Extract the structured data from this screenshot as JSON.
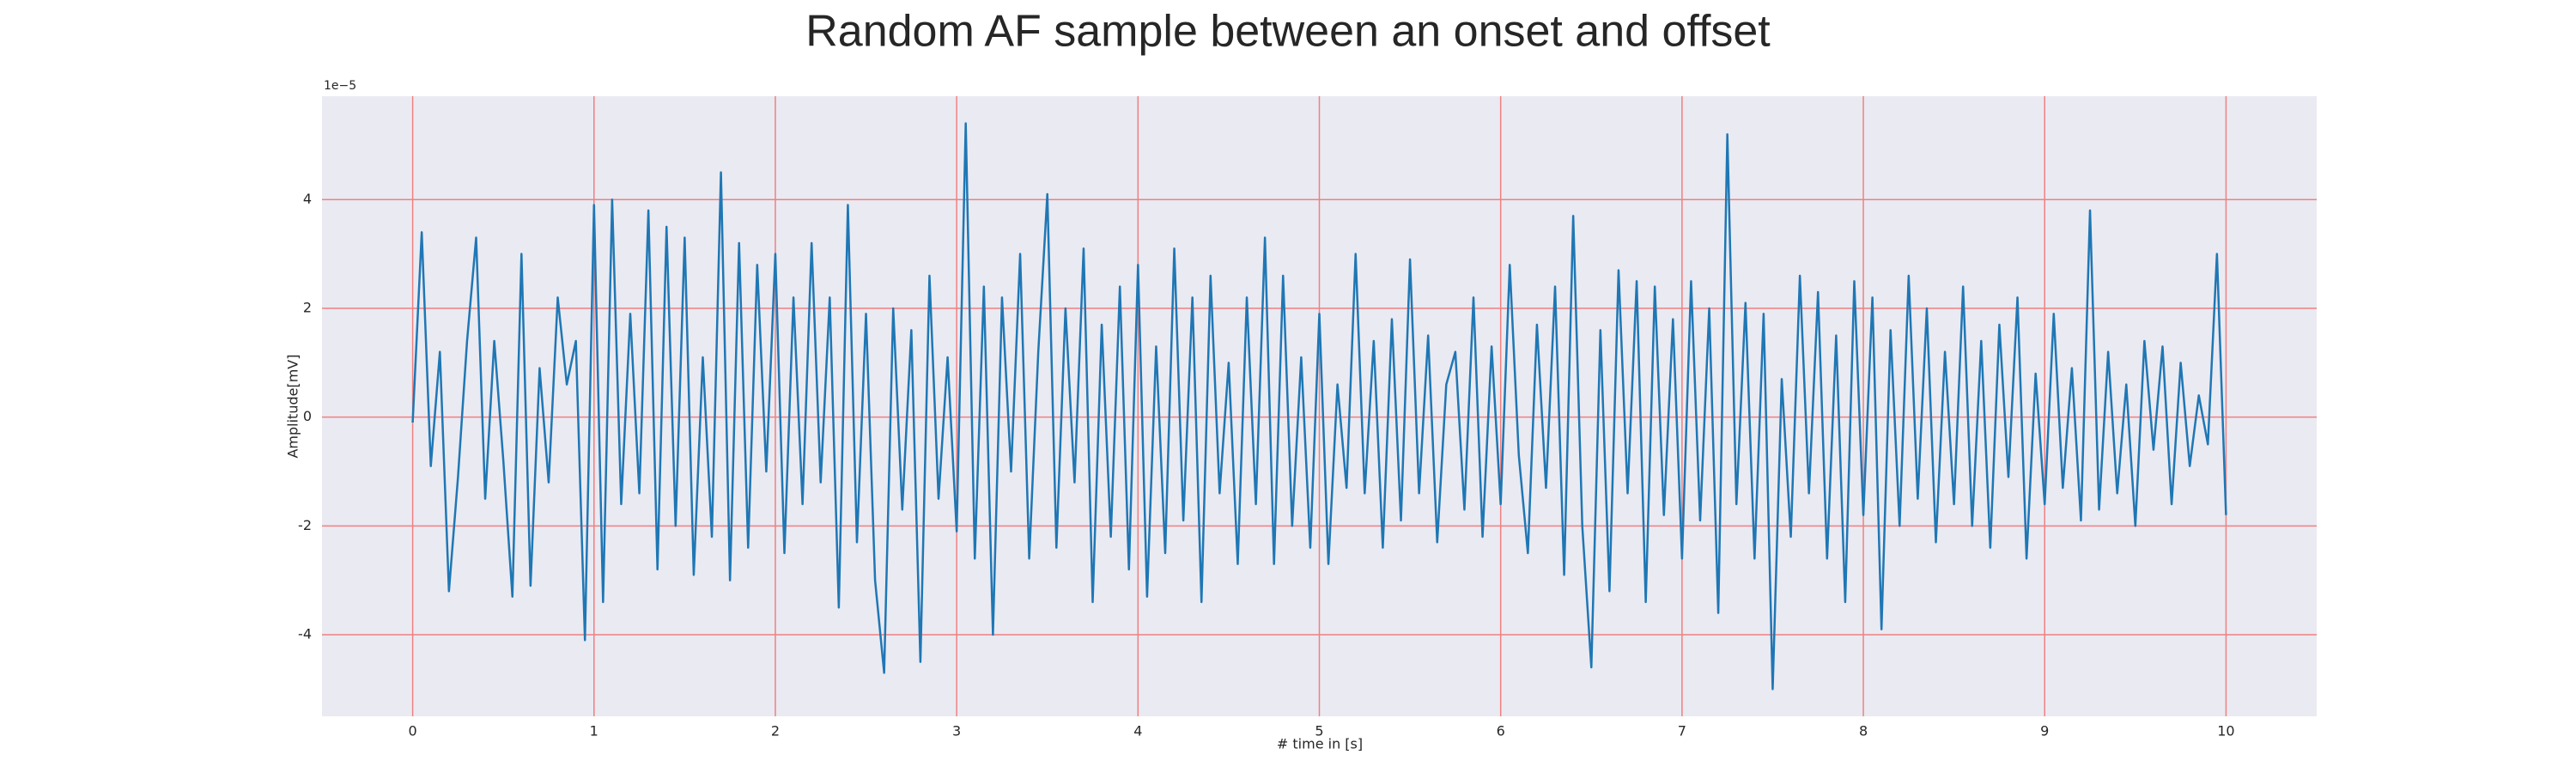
{
  "chart_data": {
    "type": "line",
    "title": "Random AF sample between an onset and offset",
    "x_label": "# time in [s]",
    "y_label": "Amplitude[mV]",
    "y_offset_label": "1e−5",
    "x": [
      0,
      0.05,
      0.1,
      0.15,
      0.2,
      0.25,
      0.3,
      0.35,
      0.4,
      0.45,
      0.5,
      0.55,
      0.6,
      0.65,
      0.7,
      0.75,
      0.8,
      0.85,
      0.9,
      0.95,
      1,
      1.05,
      1.1,
      1.15,
      1.2,
      1.25,
      1.3,
      1.35,
      1.4,
      1.45,
      1.5,
      1.55,
      1.6,
      1.65,
      1.7,
      1.75,
      1.8,
      1.85,
      1.9,
      1.95,
      2,
      2.05,
      2.1,
      2.15,
      2.2,
      2.25,
      2.3,
      2.35,
      2.4,
      2.45,
      2.5,
      2.55,
      2.6,
      2.65,
      2.7,
      2.75,
      2.8,
      2.85,
      2.9,
      2.95,
      3,
      3.05,
      3.1,
      3.15,
      3.2,
      3.25,
      3.3,
      3.35,
      3.4,
      3.45,
      3.5,
      3.55,
      3.6,
      3.65,
      3.7,
      3.75,
      3.8,
      3.85,
      3.9,
      3.95,
      4,
      4.05,
      4.1,
      4.15,
      4.2,
      4.25,
      4.3,
      4.35,
      4.4,
      4.45,
      4.5,
      4.55,
      4.6,
      4.65,
      4.7,
      4.75,
      4.8,
      4.85,
      4.9,
      4.95,
      5,
      5.05,
      5.1,
      5.15,
      5.2,
      5.25,
      5.3,
      5.35,
      5.4,
      5.45,
      5.5,
      5.55,
      5.6,
      5.65,
      5.7,
      5.75,
      5.8,
      5.85,
      5.9,
      5.95,
      6,
      6.05,
      6.1,
      6.15,
      6.2,
      6.25,
      6.3,
      6.35,
      6.4,
      6.45,
      6.5,
      6.55,
      6.6,
      6.65,
      6.7,
      6.75,
      6.8,
      6.85,
      6.9,
      6.95,
      7,
      7.05,
      7.1,
      7.15,
      7.2,
      7.25,
      7.3,
      7.35,
      7.4,
      7.45,
      7.5,
      7.55,
      7.6,
      7.65,
      7.7,
      7.75,
      7.8,
      7.85,
      7.9,
      7.95,
      8,
      8.05,
      8.1,
      8.15,
      8.2,
      8.25,
      8.3,
      8.35,
      8.4,
      8.45,
      8.5,
      8.55,
      8.6,
      8.65,
      8.7,
      8.75,
      8.8,
      8.85,
      8.9,
      8.95,
      9,
      9.05,
      9.1,
      9.15,
      9.2,
      9.25,
      9.3,
      9.35,
      9.4,
      9.45,
      9.5,
      9.55,
      9.6,
      9.65,
      9.7,
      9.75,
      9.8,
      9.85,
      9.9,
      9.95,
      10
    ],
    "series": [
      {
        "color": "#1f77b4",
        "values": [
          -0.1,
          3.4,
          -0.9,
          1.2,
          -3.2,
          -1.1,
          1.4,
          3.3,
          -1.5,
          1.4,
          -0.8,
          -3.3,
          3.0,
          -3.1,
          0.9,
          -1.2,
          2.2,
          0.6,
          1.4,
          -4.1,
          3.9,
          -3.4,
          4.0,
          -1.6,
          1.9,
          -1.4,
          3.8,
          -2.8,
          3.5,
          -2.0,
          3.3,
          -2.9,
          1.1,
          -2.2,
          4.5,
          -3.0,
          3.2,
          -2.4,
          2.8,
          -1.0,
          3.0,
          -2.5,
          2.2,
          -1.6,
          3.2,
          -1.2,
          2.2,
          -3.5,
          3.9,
          -2.3,
          1.9,
          -3.0,
          -4.7,
          2.0,
          -1.7,
          1.6,
          -4.5,
          2.6,
          -1.5,
          1.1,
          -2.1,
          5.4,
          -2.6,
          2.4,
          -4.0,
          2.2,
          -1.0,
          3.0,
          -2.6,
          1.2,
          4.1,
          -2.4,
          2.0,
          -1.2,
          3.1,
          -3.4,
          1.7,
          -2.2,
          2.4,
          -2.8,
          2.8,
          -3.3,
          1.3,
          -2.5,
          3.1,
          -1.9,
          2.2,
          -3.4,
          2.6,
          -1.4,
          1.0,
          -2.7,
          2.2,
          -1.6,
          3.3,
          -2.7,
          2.6,
          -2.0,
          1.1,
          -2.4,
          1.9,
          -2.7,
          0.6,
          -1.3,
          3.0,
          -1.4,
          1.4,
          -2.4,
          1.8,
          -1.9,
          2.9,
          -1.4,
          1.5,
          -2.3,
          0.6,
          1.2,
          -1.7,
          2.2,
          -2.2,
          1.3,
          -1.6,
          2.8,
          -0.7,
          -2.5,
          1.7,
          -1.3,
          2.4,
          -2.9,
          3.7,
          -2.0,
          -4.6,
          1.6,
          -3.2,
          2.7,
          -1.4,
          2.5,
          -3.4,
          2.4,
          -1.8,
          1.8,
          -2.6,
          2.5,
          -1.9,
          2.0,
          -3.6,
          5.2,
          -1.6,
          2.1,
          -2.6,
          1.9,
          -5.0,
          0.7,
          -2.2,
          2.6,
          -1.4,
          2.3,
          -2.6,
          1.5,
          -3.4,
          2.5,
          -1.8,
          2.2,
          -3.9,
          1.6,
          -2.0,
          2.6,
          -1.5,
          2.0,
          -2.3,
          1.2,
          -1.6,
          2.4,
          -2.0,
          1.4,
          -2.4,
          1.7,
          -1.1,
          2.2,
          -2.6,
          0.8,
          -1.6,
          1.9,
          -1.3,
          0.9,
          -1.9,
          3.8,
          -1.7,
          1.2,
          -1.4,
          0.6,
          -2.0,
          1.4,
          -0.6,
          1.3,
          -1.6,
          1.0,
          -0.9,
          0.4,
          -0.5,
          3.0,
          -1.8
        ]
      }
    ],
    "xlim": [
      -0.5,
      10.5
    ],
    "ylim": [
      -5.5,
      5.9
    ],
    "xticks": [
      0,
      1,
      2,
      3,
      4,
      5,
      6,
      7,
      8,
      9,
      10
    ],
    "yticks": [
      -4,
      -2,
      0,
      2,
      4
    ],
    "grid": true,
    "grid_color": "#f08080",
    "background": "#eaeaf2"
  }
}
